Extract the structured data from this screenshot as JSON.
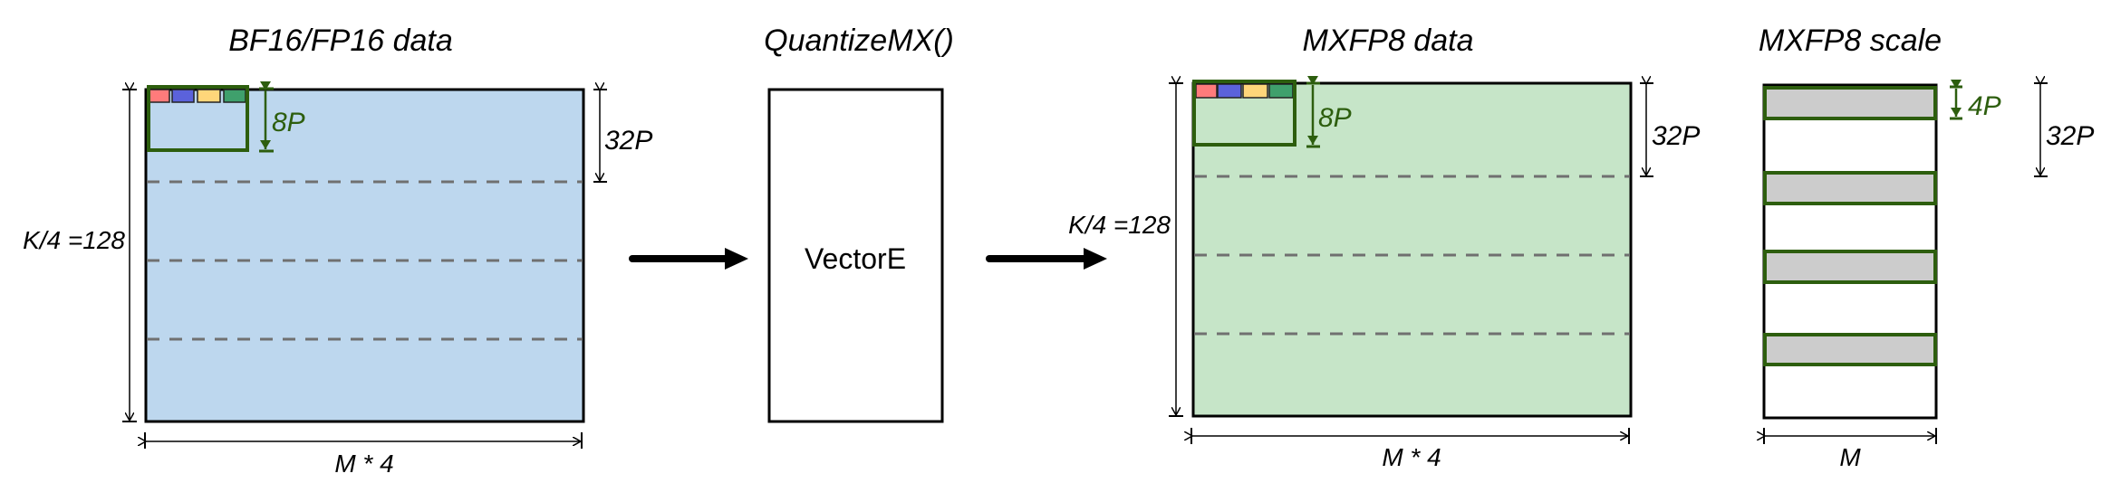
{
  "colors": {
    "bf16_fill": "#bdd7ee",
    "mxfp8_fill": "#c6e5c8",
    "scale_fill": "#cccccc",
    "highlight": "#2d5e0e",
    "dash": "#707070",
    "element_colors": [
      "#ff7b7b",
      "#5b62db",
      "#ffd67a",
      "#3fa06c"
    ]
  },
  "input": {
    "title": "BF16/FP16 data",
    "height_label": "K/4 =128",
    "width_label": "M * 4",
    "block_label": "32P",
    "tile_label": "8P"
  },
  "op": {
    "title": "QuantizeMX()",
    "engine": "VectorE"
  },
  "output_data": {
    "title": "MXFP8 data",
    "height_label": "K/4 =128",
    "width_label": "M * 4",
    "block_label": "32P",
    "tile_label": "8P"
  },
  "output_scale": {
    "title": "MXFP8 scale",
    "width_label": "M",
    "block_label": "32P",
    "tile_label": "4P"
  }
}
